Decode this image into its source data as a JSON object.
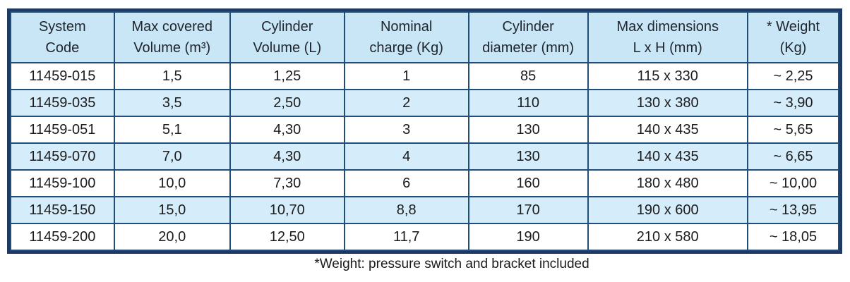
{
  "colors": {
    "border_outer": "#1F3864",
    "border_inner": "#1F4E79",
    "header_fill": "#C9E6F7",
    "row_stripe": "#D5EDFA",
    "text": "#1b1b1b"
  },
  "table": {
    "columns": [
      {
        "id": "system-code",
        "label_line1": "System",
        "label_line2": "Code"
      },
      {
        "id": "max-covered-volume",
        "label_line1": "Max covered",
        "label_line2": "Volume (m³)"
      },
      {
        "id": "cylinder-volume",
        "label_line1": "Cylinder",
        "label_line2": "Volume (L)"
      },
      {
        "id": "nominal-charge",
        "label_line1": "Nominal",
        "label_line2": "charge (Kg)"
      },
      {
        "id": "cylinder-diameter",
        "label_line1": "Cylinder",
        "label_line2": "diameter (mm)"
      },
      {
        "id": "max-dimensions",
        "label_line1": "Max dimensions",
        "label_line2": "L x H (mm)"
      },
      {
        "id": "weight",
        "label_line1": "* Weight",
        "label_line2": "(Kg)"
      }
    ],
    "rows": [
      [
        "11459-015",
        "1,5",
        "1,25",
        "1",
        "85",
        "115 x 330",
        "~ 2,25"
      ],
      [
        "11459-035",
        "3,5",
        "2,50",
        "2",
        "110",
        "130 x 380",
        "~ 3,90"
      ],
      [
        "11459-051",
        "5,1",
        "4,30",
        "3",
        "130",
        "140 x 435",
        "~ 5,65"
      ],
      [
        "11459-070",
        "7,0",
        "4,30",
        "4",
        "130",
        "140 x 435",
        "~ 6,65"
      ],
      [
        "11459-100",
        "10,0",
        "7,30",
        "6",
        "160",
        "180 x 480",
        "~ 10,00"
      ],
      [
        "11459-150",
        "15,0",
        "10,70",
        "8,8",
        "170",
        "190 x 600",
        "~ 13,95"
      ],
      [
        "11459-200",
        "20,0",
        "12,50",
        "11,7",
        "190",
        "210 x 580",
        "~ 18,05"
      ]
    ]
  },
  "footnote": "*Weight: pressure switch and bracket included"
}
